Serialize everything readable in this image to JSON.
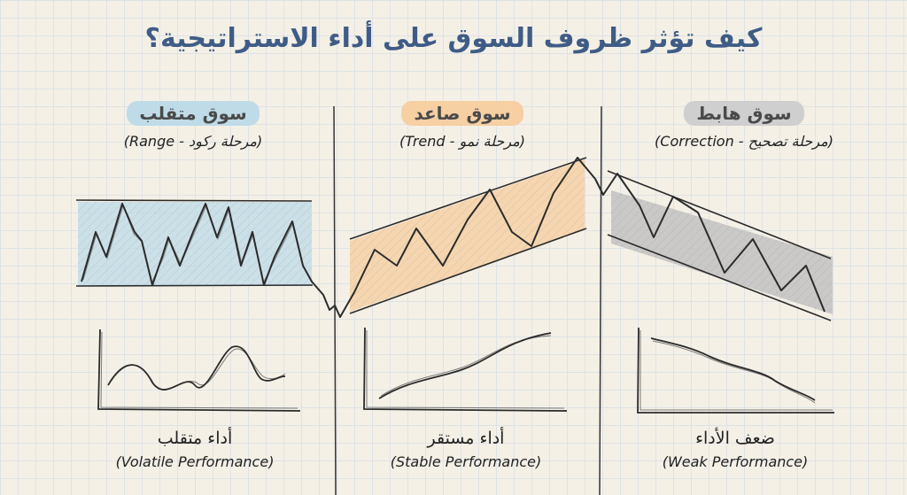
{
  "title": "كيف تؤثر ظروف السوق على أداء الاستراتيجية؟",
  "panels": [
    {
      "heading": "سوق متقلب",
      "subtitle": "(مرحلة ركود - Range)",
      "accent": "#bfdbe8",
      "performance_ar": "أداء متقلب",
      "performance_en": "(Volatile Performance)"
    },
    {
      "heading": "سوق صاعد",
      "subtitle": "(مرحلة نمو - Trend)",
      "accent": "#f6cfa3",
      "performance_ar": "أداء مستقر",
      "performance_en": "(Stable Performance)"
    },
    {
      "heading": "سوق هابط",
      "subtitle": "(مرحلة تصحيح - Correction)",
      "accent": "#cfcfcf",
      "performance_ar": "ضعف الأداء",
      "performance_en": "(Weak Performance)"
    }
  ]
}
